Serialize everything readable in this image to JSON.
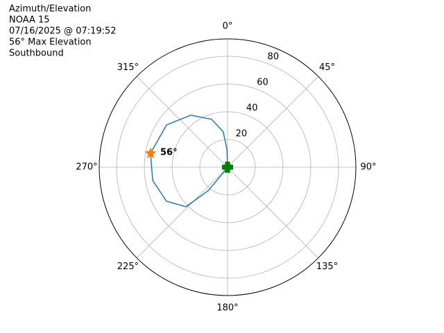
{
  "chart_data": {
    "type": "polar",
    "title_lines": [
      "Azimuth/Elevation",
      "NOAA 15",
      "07/16/2025 @ 07:19:52",
      "56° Max Elevation",
      "Southbound"
    ],
    "theta_direction": "clockwise",
    "theta_zero": "N",
    "rlim": [
      0,
      92.5
    ],
    "rticks": [
      20,
      40,
      60,
      80
    ],
    "rlabel_angle": 22.5,
    "thetaticks": [
      {
        "value": 0,
        "label": "0°"
      },
      {
        "value": 45,
        "label": "45°"
      },
      {
        "value": 90,
        "label": "90°"
      },
      {
        "value": 135,
        "label": "135°"
      },
      {
        "value": 180,
        "label": "180°"
      },
      {
        "value": 225,
        "label": "225°"
      },
      {
        "value": 270,
        "label": "270°"
      },
      {
        "value": 315,
        "label": "315°"
      }
    ],
    "grid": true,
    "series": [
      {
        "color": "#1f77b4",
        "theta": [
          0,
          0,
          358,
          353,
          341.6,
          324.8,
          304.7,
          280.2,
          260,
          240.9,
          226.5,
          219.5,
          213
        ],
        "r": [
          0,
          1.5,
          13,
          25.7,
          36.4,
          45.9,
          53.5,
          56.4,
          54.8,
          50.4,
          41.4,
          22,
          1.8
        ]
      }
    ],
    "markers": [
      {
        "marker": "star",
        "color": "#ff7f0e",
        "theta": [
          280.2
        ],
        "r": [
          56.4
        ],
        "value_labels": [
          "56°"
        ]
      },
      {
        "marker": "plus",
        "color": "#008000",
        "theta": [
          0
        ],
        "r": [
          0
        ]
      }
    ]
  }
}
